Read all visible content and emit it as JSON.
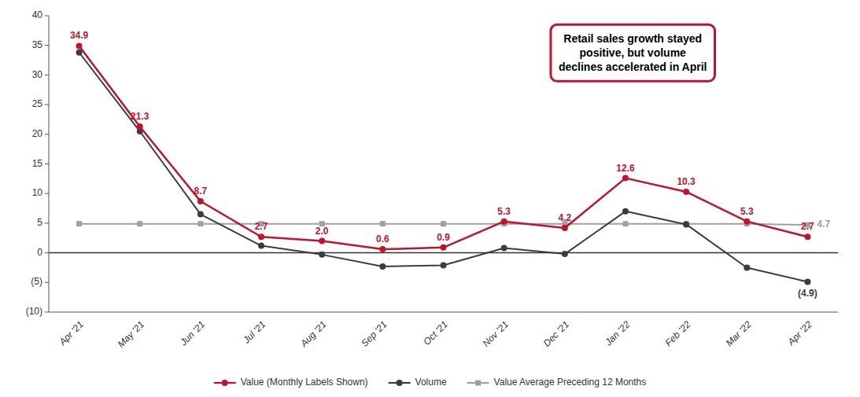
{
  "chart_data": {
    "type": "line",
    "categories": [
      "Apr '21",
      "May '21",
      "Jun '21",
      "Jul '21",
      "Aug '21",
      "Sep '21",
      "Oct '21",
      "Nov '21",
      "Dec '21",
      "Jan '22",
      "Feb '22",
      "Mar '22",
      "Apr '22"
    ],
    "series": [
      {
        "name": "Value (Monthly Labels Shown)",
        "color": "#c0142c",
        "marker": "circle",
        "data_labels": true,
        "values": [
          34.9,
          21.3,
          8.7,
          2.7,
          2.0,
          0.6,
          0.9,
          5.3,
          4.2,
          12.6,
          10.3,
          5.3,
          2.7
        ],
        "value_labels": [
          "34.9",
          "21.3",
          "8.7",
          "2.7",
          "2.0",
          "0.6",
          "0.9",
          "5.3",
          "4.2",
          "12.6",
          "10.3",
          "5.3",
          "2.7"
        ]
      },
      {
        "name": "Volume",
        "color": "#3c3c3c",
        "marker": "circle",
        "values": [
          33.8,
          20.5,
          6.5,
          1.2,
          -0.3,
          -2.3,
          -2.1,
          0.8,
          -0.2,
          7.0,
          4.8,
          -2.5,
          -4.9
        ]
      },
      {
        "name": "Value Average Preceding 12 Months",
        "color": "#a0a0a0",
        "marker": "square",
        "values": [
          4.9,
          4.9,
          4.9,
          4.9,
          4.9,
          4.9,
          4.9,
          4.9,
          4.9,
          4.9,
          4.9,
          4.9,
          4.7
        ]
      }
    ],
    "annotations": [
      {
        "text": "(4.9)",
        "x": "Apr '22",
        "y": -4.9
      },
      {
        "text": "4.7",
        "x": "Apr '22",
        "y": 4.7
      },
      {
        "text": "Retail sales growth stayed\npositive, but volume\ndeclines accelerated in April"
      }
    ],
    "ylim": [
      -10,
      40
    ],
    "yticks": [
      {
        "value": -10,
        "label": "(10)"
      },
      {
        "value": -5,
        "label": "(5)"
      },
      0,
      5,
      10,
      15,
      20,
      25,
      30,
      35,
      40
    ],
    "grid": false,
    "legend": "bottom"
  }
}
